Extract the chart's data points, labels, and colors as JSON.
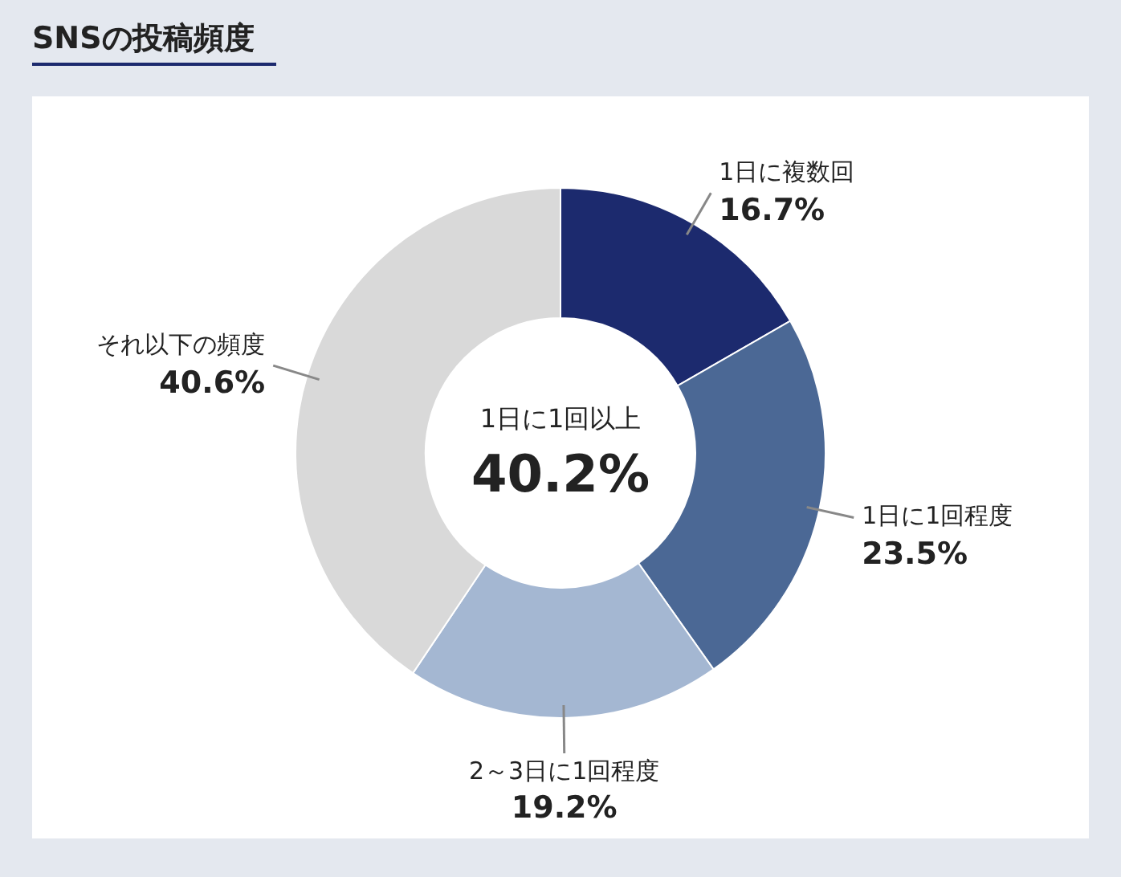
{
  "chart_data": {
    "type": "donut",
    "title": "SNSの投稿頻度",
    "categories": [
      "1日に複数回",
      "1日に1回程度",
      "2～3日に1回程度",
      "それ以下の頻度"
    ],
    "values": [
      16.7,
      23.5,
      19.2,
      40.6
    ],
    "value_labels": [
      "16.7%",
      "23.5%",
      "19.2%",
      "40.6%"
    ],
    "colors": [
      "#1c2a6e",
      "#4b6895",
      "#a4b7d2",
      "#d9d9d9"
    ],
    "annotations": [
      "1日に1回以上",
      "40.2%"
    ],
    "legend": false
  }
}
